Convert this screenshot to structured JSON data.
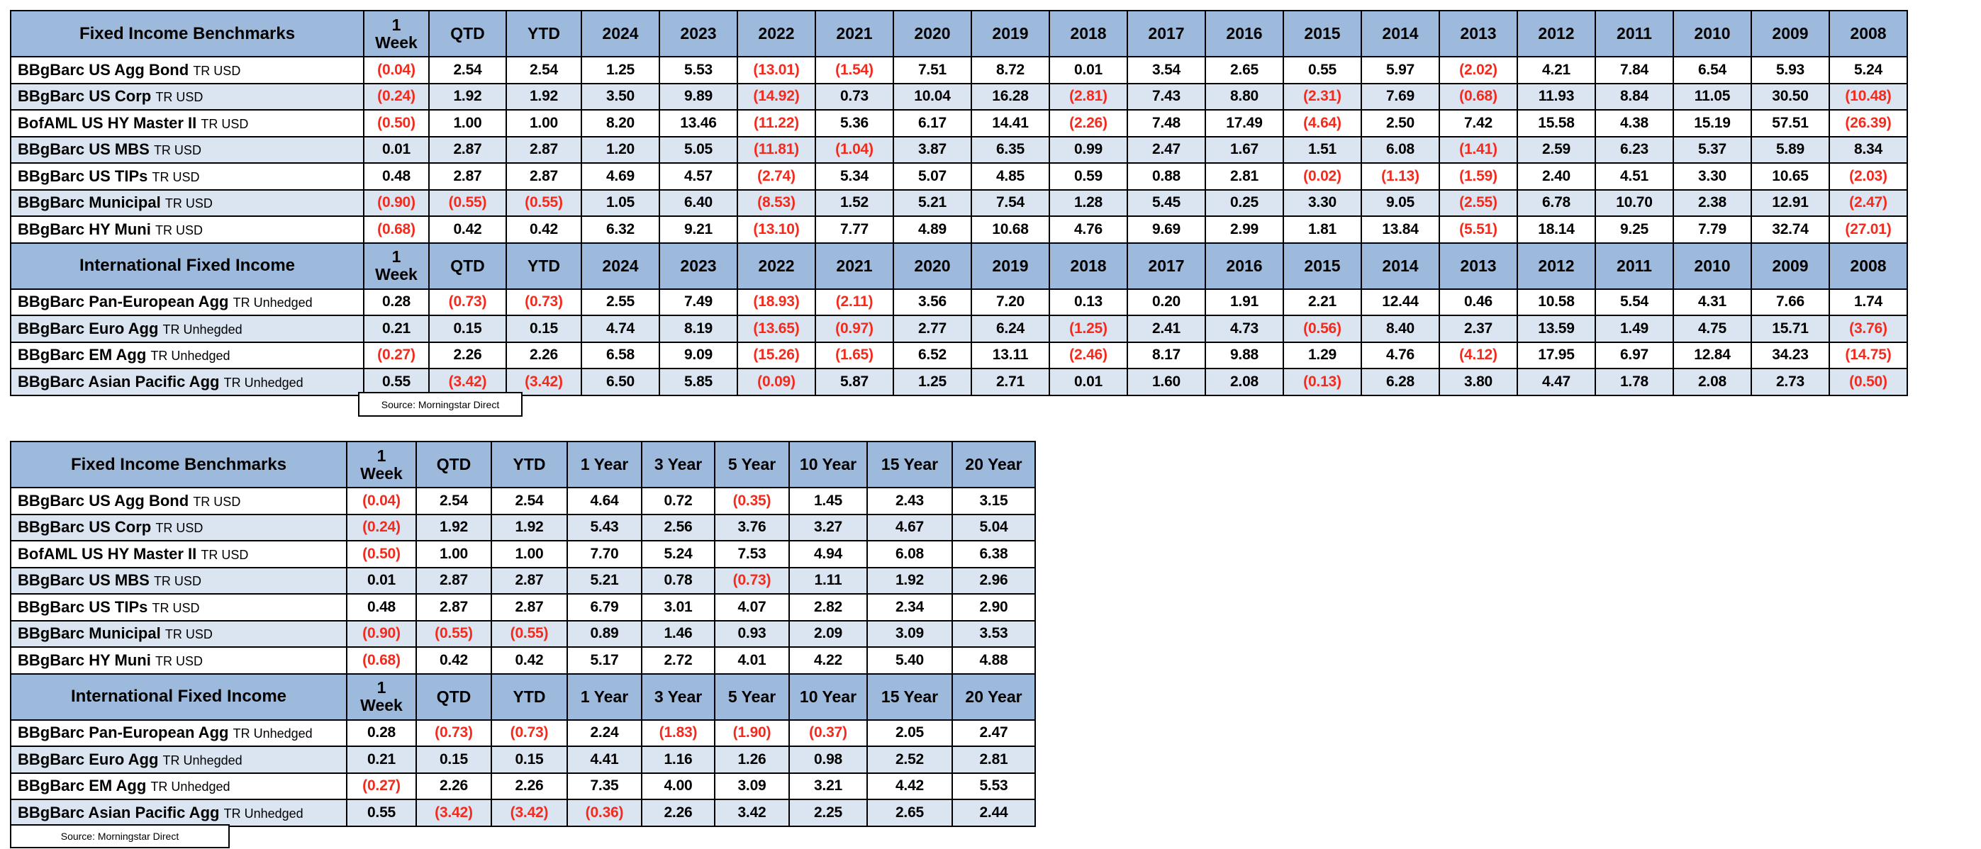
{
  "source_note": "Source: Morningstar Direct",
  "colors": {
    "header_bg": "#9DBADC",
    "row_bg": "#FFFFFF",
    "row_alt_bg": "#DBE5F1",
    "negative_text": "#F42A1D",
    "positive_text": "#000000",
    "border": "#000000"
  },
  "tables": [
    {
      "id": "annual",
      "columns": [
        "1\nWeek",
        "QTD",
        "YTD",
        "2024",
        "2023",
        "2022",
        "2021",
        "2020",
        "2019",
        "2018",
        "2017",
        "2016",
        "2015",
        "2014",
        "2013",
        "2012",
        "2011",
        "2010",
        "2009",
        "2008"
      ],
      "sections": [
        {
          "title": "Fixed Income Benchmarks",
          "rows": [
            {
              "name": "BBgBarc US Agg Bond",
              "suffix": "TR USD",
              "values": [
                "(0.04)",
                "2.54",
                "2.54",
                "1.25",
                "5.53",
                "(13.01)",
                "(1.54)",
                "7.51",
                "8.72",
                "0.01",
                "3.54",
                "2.65",
                "0.55",
                "5.97",
                "(2.02)",
                "4.21",
                "7.84",
                "6.54",
                "5.93",
                "5.24"
              ]
            },
            {
              "name": "BBgBarc US Corp",
              "suffix": "TR USD",
              "values": [
                "(0.24)",
                "1.92",
                "1.92",
                "3.50",
                "9.89",
                "(14.92)",
                "0.73",
                "10.04",
                "16.28",
                "(2.81)",
                "7.43",
                "8.80",
                "(2.31)",
                "7.69",
                "(0.68)",
                "11.93",
                "8.84",
                "11.05",
                "30.50",
                "(10.48)"
              ]
            },
            {
              "name": "BofAML  US HY Master II",
              "suffix": "TR USD",
              "values": [
                "(0.50)",
                "1.00",
                "1.00",
                "8.20",
                "13.46",
                "(11.22)",
                "5.36",
                "6.17",
                "14.41",
                "(2.26)",
                "7.48",
                "17.49",
                "(4.64)",
                "2.50",
                "7.42",
                "15.58",
                "4.38",
                "15.19",
                "57.51",
                "(26.39)"
              ]
            },
            {
              "name": "BBgBarc US MBS",
              "suffix": "TR USD",
              "values": [
                "0.01",
                "2.87",
                "2.87",
                "1.20",
                "5.05",
                "(11.81)",
                "(1.04)",
                "3.87",
                "6.35",
                "0.99",
                "2.47",
                "1.67",
                "1.51",
                "6.08",
                "(1.41)",
                "2.59",
                "6.23",
                "5.37",
                "5.89",
                "8.34"
              ]
            },
            {
              "name": "BBgBarc US TIPs",
              "suffix": "TR USD",
              "values": [
                "0.48",
                "2.87",
                "2.87",
                "4.69",
                "4.57",
                "(2.74)",
                "5.34",
                "5.07",
                "4.85",
                "0.59",
                "0.88",
                "2.81",
                "(0.02)",
                "(1.13)",
                "(1.59)",
                "2.40",
                "4.51",
                "3.30",
                "10.65",
                "(2.03)"
              ]
            },
            {
              "name": "BBgBarc Municipal",
              "suffix": "TR USD",
              "values": [
                "(0.90)",
                "(0.55)",
                "(0.55)",
                "1.05",
                "6.40",
                "(8.53)",
                "1.52",
                "5.21",
                "7.54",
                "1.28",
                "5.45",
                "0.25",
                "3.30",
                "9.05",
                "(2.55)",
                "6.78",
                "10.70",
                "2.38",
                "12.91",
                "(2.47)"
              ]
            },
            {
              "name": "BBgBarc HY Muni",
              "suffix": "TR USD",
              "values": [
                "(0.68)",
                "0.42",
                "0.42",
                "6.32",
                "9.21",
                "(13.10)",
                "7.77",
                "4.89",
                "10.68",
                "4.76",
                "9.69",
                "2.99",
                "1.81",
                "13.84",
                "(5.51)",
                "18.14",
                "9.25",
                "7.79",
                "32.74",
                "(27.01)"
              ]
            }
          ]
        },
        {
          "title": "International Fixed Income",
          "rows": [
            {
              "name": "BBgBarc Pan-European Agg",
              "suffix": "TR Unhedged",
              "values": [
                "0.28",
                "(0.73)",
                "(0.73)",
                "2.55",
                "7.49",
                "(18.93)",
                "(2.11)",
                "3.56",
                "7.20",
                "0.13",
                "0.20",
                "1.91",
                "2.21",
                "12.44",
                "0.46",
                "10.58",
                "5.54",
                "4.31",
                "7.66",
                "1.74"
              ]
            },
            {
              "name": "BBgBarc Euro Agg",
              "suffix": "TR Unhegded",
              "values": [
                "0.21",
                "0.15",
                "0.15",
                "4.74",
                "8.19",
                "(13.65)",
                "(0.97)",
                "2.77",
                "6.24",
                "(1.25)",
                "2.41",
                "4.73",
                "(0.56)",
                "8.40",
                "2.37",
                "13.59",
                "1.49",
                "4.75",
                "15.71",
                "(3.76)"
              ]
            },
            {
              "name": "BBgBarc EM Agg",
              "suffix": "TR Unhedged",
              "values": [
                "(0.27)",
                "2.26",
                "2.26",
                "6.58",
                "9.09",
                "(15.26)",
                "(1.65)",
                "6.52",
                "13.11",
                "(2.46)",
                "8.17",
                "9.88",
                "1.29",
                "4.76",
                "(4.12)",
                "17.95",
                "6.97",
                "12.84",
                "34.23",
                "(14.75)"
              ]
            },
            {
              "name": "BBgBarc Asian Pacific Agg",
              "suffix": "TR Unhedged",
              "values": [
                "0.55",
                "(3.42)",
                "(3.42)",
                "6.50",
                "5.85",
                "(0.09)",
                "5.87",
                "1.25",
                "2.71",
                "0.01",
                "1.60",
                "2.08",
                "(0.13)",
                "6.28",
                "3.80",
                "4.47",
                "1.78",
                "2.08",
                "2.73",
                "(0.50)"
              ]
            }
          ]
        }
      ]
    },
    {
      "id": "trailing",
      "columns": [
        "1\nWeek",
        "QTD",
        "YTD",
        "1 Year",
        "3 Year",
        "5 Year",
        "10 Year",
        "15 Year",
        "20 Year"
      ],
      "sections": [
        {
          "title": "Fixed Income Benchmarks",
          "rows": [
            {
              "name": "BBgBarc US Agg Bond",
              "suffix": "TR USD",
              "values": [
                "(0.04)",
                "2.54",
                "2.54",
                "4.64",
                "0.72",
                "(0.35)",
                "1.45",
                "2.43",
                "3.15"
              ]
            },
            {
              "name": "BBgBarc US Corp",
              "suffix": "TR USD",
              "values": [
                "(0.24)",
                "1.92",
                "1.92",
                "5.43",
                "2.56",
                "3.76",
                "3.27",
                "4.67",
                "5.04"
              ]
            },
            {
              "name": "BofAML  US HY Master II",
              "suffix": "TR USD",
              "values": [
                "(0.50)",
                "1.00",
                "1.00",
                "7.70",
                "5.24",
                "7.53",
                "4.94",
                "6.08",
                "6.38"
              ]
            },
            {
              "name": "BBgBarc US MBS",
              "suffix": "TR USD",
              "values": [
                "0.01",
                "2.87",
                "2.87",
                "5.21",
                "0.78",
                "(0.73)",
                "1.11",
                "1.92",
                "2.96"
              ]
            },
            {
              "name": "BBgBarc US TIPs",
              "suffix": "TR USD",
              "values": [
                "0.48",
                "2.87",
                "2.87",
                "6.79",
                "3.01",
                "4.07",
                "2.82",
                "2.34",
                "2.90"
              ]
            },
            {
              "name": "BBgBarc Municipal",
              "suffix": "TR USD",
              "values": [
                "(0.90)",
                "(0.55)",
                "(0.55)",
                "0.89",
                "1.46",
                "0.93",
                "2.09",
                "3.09",
                "3.53"
              ]
            },
            {
              "name": "BBgBarc HY Muni",
              "suffix": "TR USD",
              "values": [
                "(0.68)",
                "0.42",
                "0.42",
                "5.17",
                "2.72",
                "4.01",
                "4.22",
                "5.40",
                "4.88"
              ]
            }
          ]
        },
        {
          "title": "International Fixed Income",
          "rows": [
            {
              "name": "BBgBarc Pan-European Agg",
              "suffix": "TR Unhedged",
              "values": [
                "0.28",
                "(0.73)",
                "(0.73)",
                "2.24",
                "(1.83)",
                "(1.90)",
                "(0.37)",
                "2.05",
                "2.47"
              ]
            },
            {
              "name": "BBgBarc Euro Agg",
              "suffix": "TR Unhegded",
              "values": [
                "0.21",
                "0.15",
                "0.15",
                "4.41",
                "1.16",
                "1.26",
                "0.98",
                "2.52",
                "2.81"
              ]
            },
            {
              "name": "BBgBarc EM Agg",
              "suffix": "TR Unhedged",
              "values": [
                "(0.27)",
                "2.26",
                "2.26",
                "7.35",
                "4.00",
                "3.09",
                "3.21",
                "4.42",
                "5.53"
              ]
            },
            {
              "name": "BBgBarc Asian Pacific Agg",
              "suffix": "TR Unhedged",
              "values": [
                "0.55",
                "(3.42)",
                "(3.42)",
                "(0.36)",
                "2.26",
                "3.42",
                "2.25",
                "2.65",
                "2.44"
              ]
            }
          ]
        }
      ]
    }
  ]
}
